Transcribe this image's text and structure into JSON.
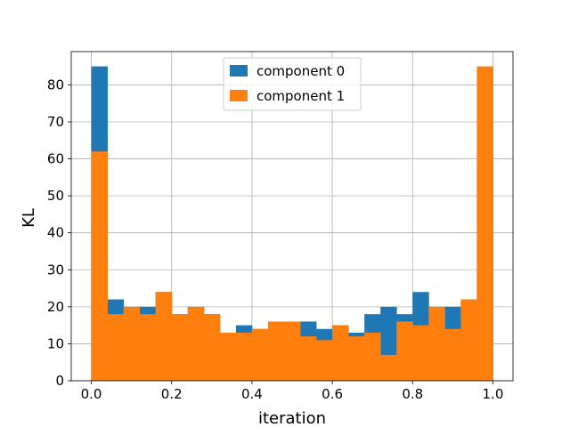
{
  "chart_data": {
    "type": "bar",
    "title": "",
    "xlabel": "iteration",
    "ylabel": "KL",
    "xlim": [
      -0.05,
      1.05
    ],
    "ylim": [
      0,
      89
    ],
    "bin_width": 0.04,
    "bin_left_edges": [
      0.0,
      0.04,
      0.08,
      0.12,
      0.16,
      0.2,
      0.24,
      0.28,
      0.32,
      0.36,
      0.4,
      0.44,
      0.48,
      0.52,
      0.56,
      0.6,
      0.64,
      0.68,
      0.72,
      0.76,
      0.8,
      0.84,
      0.88,
      0.92,
      0.96
    ],
    "x_ticks": [
      0.0,
      0.2,
      0.4,
      0.6,
      0.8,
      1.0
    ],
    "x_tick_labels": [
      "0.0",
      "0.2",
      "0.4",
      "0.6",
      "0.8",
      "1.0"
    ],
    "y_ticks": [
      0,
      10,
      20,
      30,
      40,
      50,
      60,
      70,
      80
    ],
    "y_tick_labels": [
      "0",
      "10",
      "20",
      "30",
      "40",
      "50",
      "60",
      "70",
      "80"
    ],
    "grid": true,
    "legend_position": "top-center",
    "series": [
      {
        "name": "component 0",
        "color": "#1f77b4",
        "values": [
          85,
          22,
          20,
          20,
          24,
          18,
          20,
          18,
          13,
          15,
          14,
          16,
          16,
          16,
          14,
          15,
          13,
          18,
          20,
          18,
          24,
          20,
          20,
          22,
          62
        ]
      },
      {
        "name": "component 1",
        "color": "#ff7f0e",
        "values": [
          62,
          18,
          20,
          18,
          24,
          18,
          20,
          18,
          13,
          13,
          14,
          16,
          16,
          12,
          11,
          15,
          12,
          13,
          7,
          16,
          15,
          20,
          14,
          22,
          85
        ]
      }
    ]
  }
}
